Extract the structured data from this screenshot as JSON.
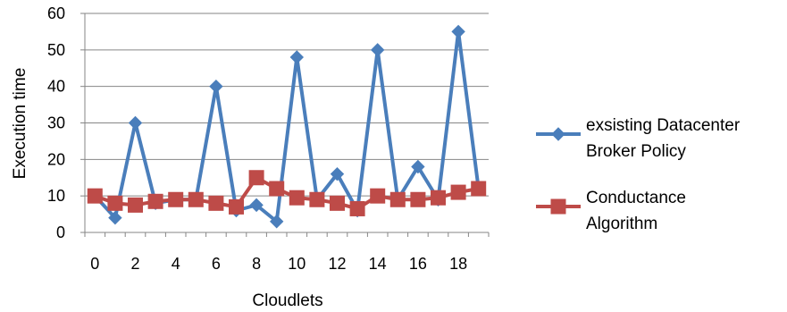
{
  "chart_data": {
    "type": "line",
    "xlabel": "Cloudlets",
    "ylabel": "Execution time",
    "x": [
      0,
      1,
      2,
      3,
      4,
      5,
      6,
      7,
      8,
      9,
      10,
      11,
      12,
      13,
      14,
      15,
      16,
      17,
      18,
      19
    ],
    "xticks": [
      "0",
      "2",
      "4",
      "6",
      "8",
      "10",
      "12",
      "14",
      "16",
      "18"
    ],
    "yticks": [
      "0",
      "10",
      "20",
      "30",
      "40",
      "50",
      "60"
    ],
    "ylim": [
      0,
      60
    ],
    "grid": "horizontal",
    "legend_position": "right",
    "series": [
      {
        "name_lines": [
          "exsisting Datacenter",
          "Broker Policy"
        ],
        "color": "#4a7ebb",
        "marker": "diamond",
        "values": [
          10,
          4,
          30,
          8,
          9,
          9,
          40,
          6,
          7.5,
          3,
          48,
          9,
          16,
          6,
          50,
          9,
          18,
          9,
          55,
          12
        ]
      },
      {
        "name_lines": [
          "Conductance",
          "Algorithm"
        ],
        "color": "#be4b48",
        "marker": "square",
        "values": [
          10,
          8,
          7.5,
          8.5,
          9,
          9,
          8,
          7,
          15,
          12,
          9.5,
          9,
          8,
          6.5,
          10,
          9,
          9,
          9.5,
          11,
          12
        ]
      }
    ]
  }
}
